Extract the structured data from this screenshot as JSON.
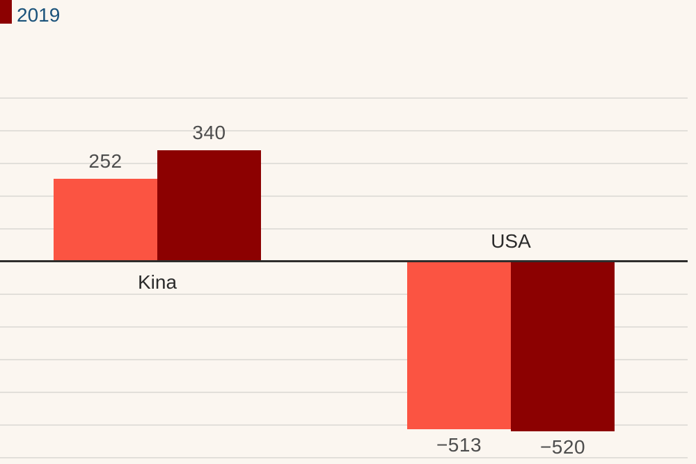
{
  "legend": {
    "items": [
      {
        "label": "2019",
        "swatch_color": "#8c0101"
      }
    ]
  },
  "chart_data": {
    "type": "bar",
    "title": "",
    "xlabel": "",
    "ylabel": "",
    "categories": [
      "Kina",
      "USA"
    ],
    "series": [
      {
        "name": "",
        "color": "#fb5442",
        "values": [
          252,
          -513
        ],
        "labels": [
          "252",
          "−513"
        ]
      },
      {
        "name": "2019",
        "color": "#8c0101",
        "values": [
          340,
          -520
        ],
        "labels": [
          "340",
          "−520"
        ]
      }
    ],
    "ylim": [
      -620,
      800
    ],
    "grid": true,
    "grid_values": [
      -600,
      -500,
      -400,
      -300,
      -200,
      -100,
      100,
      200,
      300,
      400,
      500
    ],
    "legend_position": "top-left",
    "colors": {
      "background": "#fbf6f0",
      "gridline": "#e2dfda",
      "zero_axis": "#2e2d2c",
      "value_label": "#4d4d4d",
      "category_label": "#2b2b2b",
      "legend_text": "#1a527a"
    }
  }
}
